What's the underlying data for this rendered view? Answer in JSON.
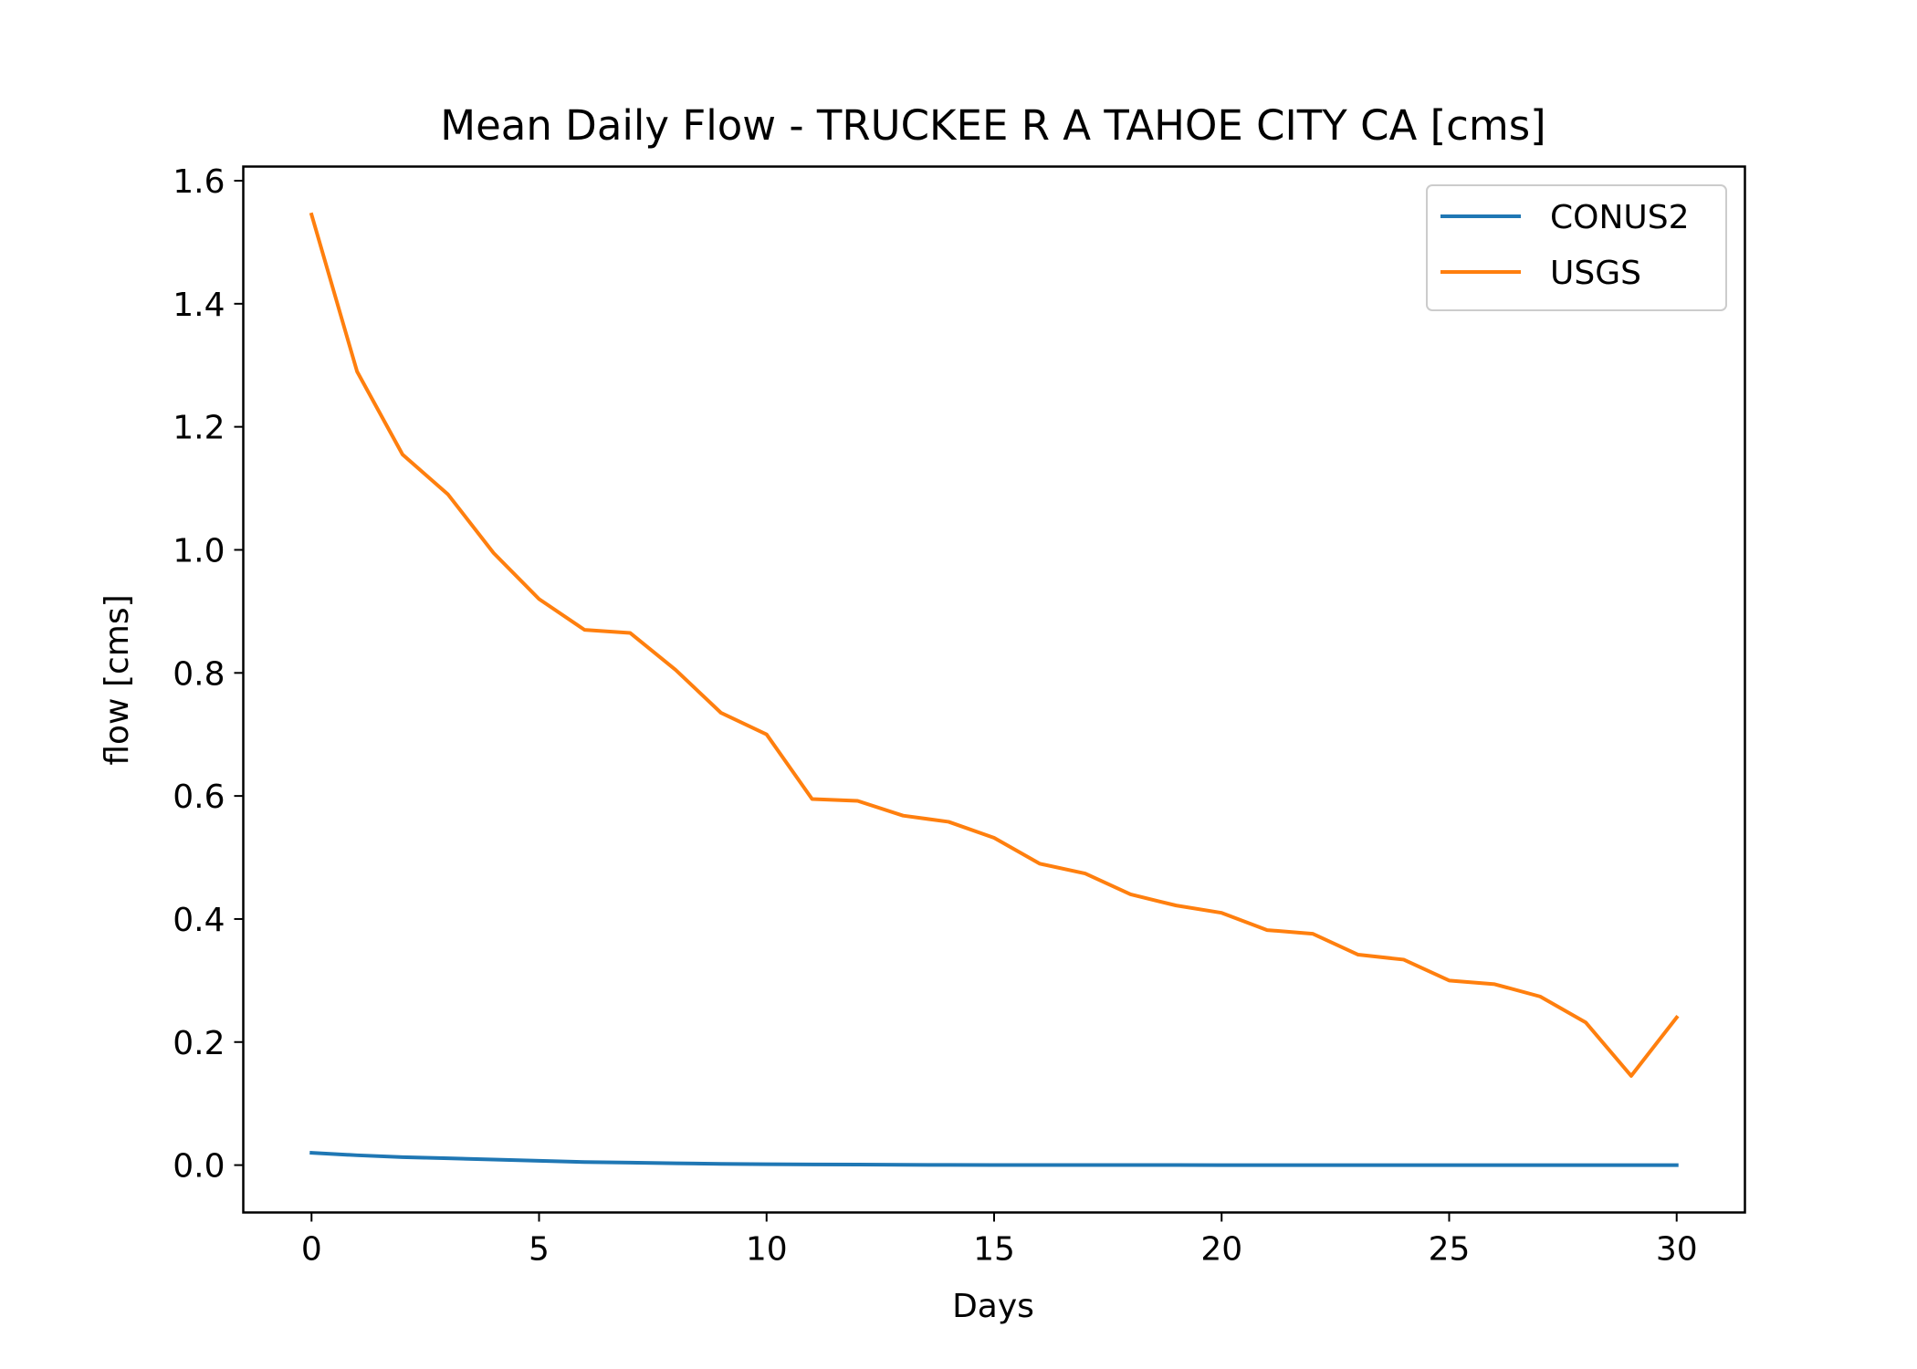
{
  "chart_data": {
    "type": "line",
    "title": "Mean Daily Flow - TRUCKEE R A TAHOE CITY CA [cms]",
    "xlabel": "Days",
    "ylabel": "flow [cms]",
    "xlim": [
      -1.5,
      31.5
    ],
    "ylim": [
      -0.077,
      1.623
    ],
    "x_ticks": [
      0,
      5,
      10,
      15,
      20,
      25,
      30
    ],
    "x_tick_labels": [
      "0",
      "5",
      "10",
      "15",
      "20",
      "25",
      "30"
    ],
    "y_ticks": [
      0.0,
      0.2,
      0.4,
      0.6,
      0.8,
      1.0,
      1.2,
      1.4,
      1.6
    ],
    "y_tick_labels": [
      "0.0",
      "0.2",
      "0.4",
      "0.6",
      "0.8",
      "1.0",
      "1.2",
      "1.4",
      "1.6"
    ],
    "grid": false,
    "legend_position": "upper right",
    "x": [
      0,
      1,
      2,
      3,
      4,
      5,
      6,
      7,
      8,
      9,
      10,
      11,
      12,
      13,
      14,
      15,
      16,
      17,
      18,
      19,
      20,
      21,
      22,
      23,
      24,
      25,
      26,
      27,
      28,
      29,
      30
    ],
    "series": [
      {
        "name": "CONUS2",
        "color": "#1f77b4",
        "values": [
          0.02,
          0.016,
          0.013,
          0.011,
          0.009,
          0.007,
          0.005,
          0.004,
          0.003,
          0.002,
          0.0015,
          0.001,
          0.0008,
          0.0005,
          0.0003,
          0.0002,
          0.0001,
          0.0001,
          0.0001,
          0.0001,
          0.0,
          0.0,
          0.0,
          0.0,
          0.0,
          0.0,
          0.0,
          0.0,
          0.0,
          0.0,
          0.0
        ]
      },
      {
        "name": "USGS",
        "color": "#ff7f0e",
        "values": [
          1.545,
          1.29,
          1.155,
          1.09,
          0.995,
          0.92,
          0.87,
          0.865,
          0.805,
          0.735,
          0.7,
          0.595,
          0.592,
          0.568,
          0.558,
          0.532,
          0.49,
          0.474,
          0.44,
          0.422,
          0.41,
          0.382,
          0.376,
          0.342,
          0.334,
          0.3,
          0.294,
          0.274,
          0.232,
          0.145,
          0.24
        ]
      }
    ]
  }
}
